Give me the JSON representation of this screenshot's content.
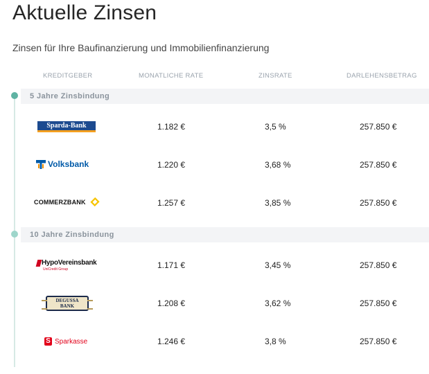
{
  "page": {
    "title": "Aktuelle Zinsen",
    "subtitle": "Zinsen für Ihre Baufinanzierung und Immobilienfinanzierung"
  },
  "columns": {
    "bank": "KREDITGEBER",
    "rate": "MONATLICHE RATE",
    "zins": "ZINSRATE",
    "betrag": "DARLEHENSBETRAG"
  },
  "colors": {
    "timeline": "#5fb3a3",
    "group_bg": "#f3f4f6"
  },
  "groups": [
    {
      "label": "5 Jahre Zinsbindung",
      "rows": [
        {
          "bank": "Sparda-Bank",
          "logo_icon": "sparda-bank-logo",
          "rate": "1.182 €",
          "zins": "3,5 %",
          "betrag": "257.850 €"
        },
        {
          "bank": "Volksbank",
          "logo_icon": "volksbank-logo",
          "rate": "1.220 €",
          "zins": "3,68 %",
          "betrag": "257.850 €"
        },
        {
          "bank": "COMMERZBANK",
          "logo_icon": "commerzbank-logo",
          "rate": "1.257 €",
          "zins": "3,85 %",
          "betrag": "257.850 €"
        }
      ]
    },
    {
      "label": "10 Jahre Zinsbindung",
      "rows": [
        {
          "bank": "HypoVereinsbank",
          "bank_sub": "UniCredit Group",
          "logo_icon": "hypovereinsbank-logo",
          "rate": "1.171 €",
          "zins": "3,45 %",
          "betrag": "257.850 €"
        },
        {
          "bank_line1": "DEGUSSA",
          "bank_line2": "BANK",
          "logo_icon": "degussa-bank-logo",
          "rate": "1.208 €",
          "zins": "3,62 %",
          "betrag": "257.850 €"
        },
        {
          "bank": "Sparkasse",
          "logo_icon": "sparkasse-logo",
          "rate": "1.246 €",
          "zins": "3,8 %",
          "betrag": "257.850 €"
        }
      ]
    }
  ]
}
